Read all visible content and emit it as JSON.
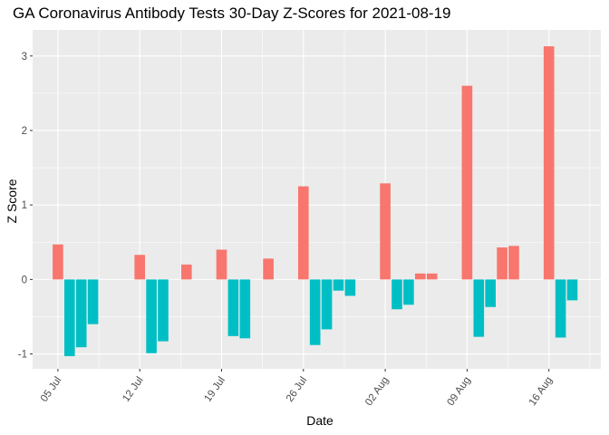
{
  "chart_data": {
    "type": "bar",
    "title": "GA Coronavirus Antibody Tests 30-Day Z-Scores for 2021-08-19",
    "xlabel": "Date",
    "ylabel": "Z Score",
    "start_date": "2021-07-04",
    "x_ticks": [
      {
        "date": "2021-07-05",
        "label": "05 Jul"
      },
      {
        "date": "2021-07-12",
        "label": "12 Jul"
      },
      {
        "date": "2021-07-19",
        "label": "19 Jul"
      },
      {
        "date": "2021-07-26",
        "label": "26 Jul"
      },
      {
        "date": "2021-08-02",
        "label": "02 Aug"
      },
      {
        "date": "2021-08-09",
        "label": "09 Aug"
      },
      {
        "date": "2021-08-16",
        "label": "16 Aug"
      }
    ],
    "y_ticks": [
      -1,
      0,
      1,
      2,
      3
    ],
    "ylim": [
      -1.2,
      3.35
    ],
    "colors": {
      "positive": "#F8766D",
      "negative": "#00BFC4",
      "panel": "#EBEBEB",
      "grid": "#FFFFFF"
    },
    "dates": [
      "2021-07-05",
      "2021-07-06",
      "2021-07-07",
      "2021-07-08",
      "2021-07-09",
      "2021-07-10",
      "2021-07-11",
      "2021-07-12",
      "2021-07-13",
      "2021-07-14",
      "2021-07-15",
      "2021-07-16",
      "2021-07-17",
      "2021-07-18",
      "2021-07-19",
      "2021-07-20",
      "2021-07-21",
      "2021-07-22",
      "2021-07-23",
      "2021-07-24",
      "2021-07-25",
      "2021-07-26",
      "2021-07-27",
      "2021-07-28",
      "2021-07-29",
      "2021-07-30",
      "2021-07-31",
      "2021-08-01",
      "2021-08-02",
      "2021-08-03",
      "2021-08-04",
      "2021-08-05",
      "2021-08-06",
      "2021-08-07",
      "2021-08-08",
      "2021-08-09",
      "2021-08-10",
      "2021-08-11",
      "2021-08-12",
      "2021-08-13",
      "2021-08-14",
      "2021-08-15",
      "2021-08-16",
      "2021-08-17",
      "2021-08-18"
    ],
    "values": [
      0.47,
      -1.03,
      -0.91,
      -0.6,
      null,
      null,
      null,
      0.33,
      -0.99,
      -0.83,
      null,
      0.2,
      null,
      null,
      0.4,
      -0.76,
      -0.79,
      null,
      0.28,
      null,
      null,
      1.25,
      -0.88,
      -0.67,
      -0.15,
      -0.22,
      null,
      null,
      1.29,
      -0.4,
      -0.34,
      0.08,
      0.08,
      null,
      null,
      2.6,
      -0.77,
      -0.37,
      0.43,
      0.45,
      null,
      null,
      3.13,
      -0.78,
      -0.28
    ]
  }
}
